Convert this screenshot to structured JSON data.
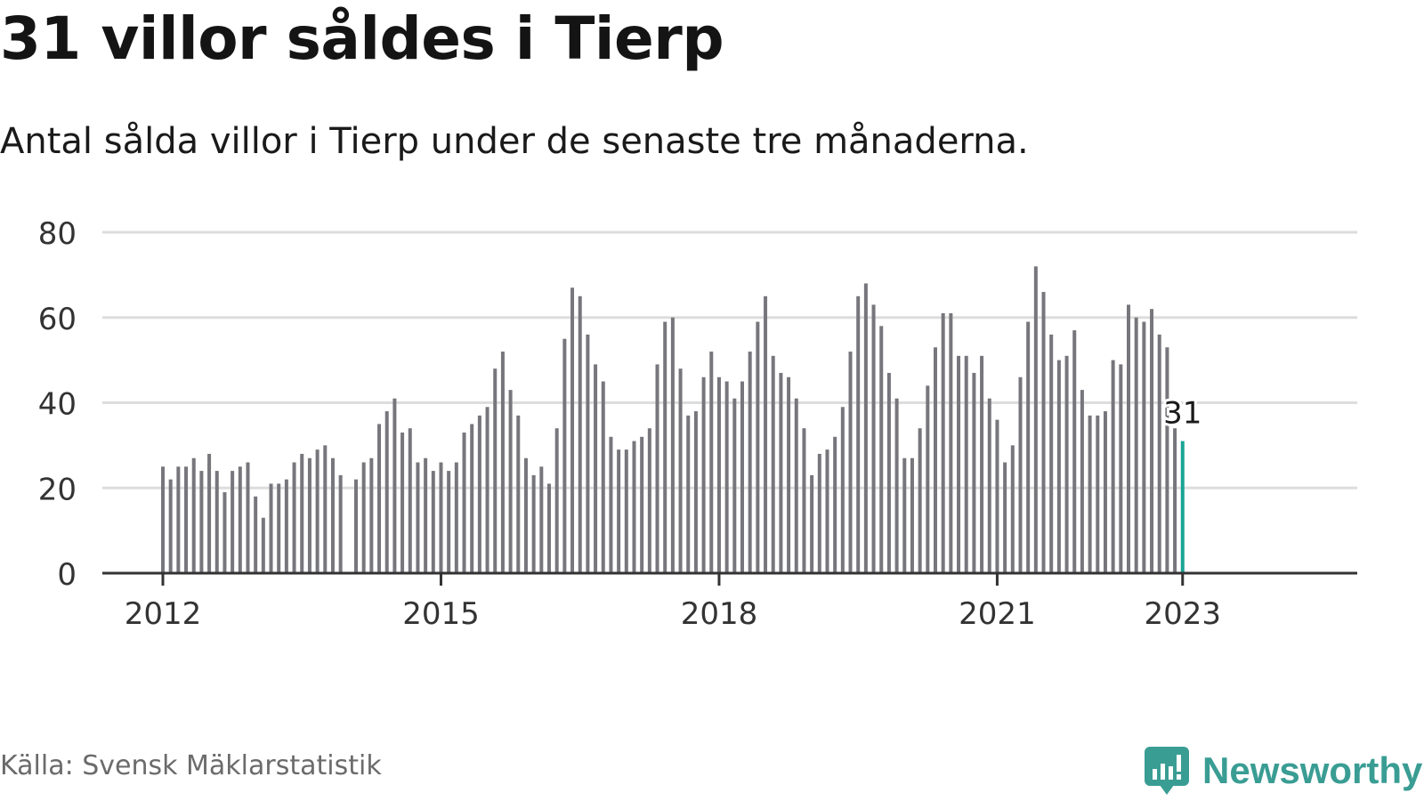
{
  "title": "31 villor såldes i Tierp",
  "subtitle": "Antal sålda villor i Tierp under de senaste tre månaderna.",
  "source": "Källa: Svensk Mäklarstatistik",
  "brand": {
    "name": "Newsworthy",
    "icon": "newsworthy-logo-icon"
  },
  "colors": {
    "bar": "#76767c",
    "highlight": "#1aa394",
    "grid": "#dddddd",
    "axis": "#333333",
    "brand": "#3a9d94"
  },
  "chart_data": {
    "type": "bar",
    "ylim": [
      0,
      80
    ],
    "yticks": [
      0,
      20,
      40,
      60,
      80
    ],
    "x_ticks": [
      {
        "label": "2012",
        "index": 0
      },
      {
        "label": "2015",
        "index": 36
      },
      {
        "label": "2018",
        "index": 72
      },
      {
        "label": "2021",
        "index": 108
      },
      {
        "label": "2023",
        "index": 132
      }
    ],
    "grid": true,
    "start": "2012-01",
    "values": [
      25,
      22,
      25,
      25,
      27,
      24,
      28,
      24,
      19,
      24,
      25,
      26,
      18,
      13,
      21,
      21,
      22,
      26,
      28,
      27,
      29,
      30,
      27,
      23,
      0,
      22,
      26,
      27,
      35,
      38,
      41,
      33,
      34,
      26,
      27,
      24,
      26,
      24,
      26,
      33,
      35,
      37,
      39,
      48,
      52,
      43,
      37,
      27,
      23,
      25,
      21,
      34,
      55,
      67,
      65,
      56,
      49,
      45,
      32,
      29,
      29,
      31,
      32,
      34,
      49,
      59,
      60,
      48,
      37,
      38,
      46,
      52,
      46,
      45,
      41,
      45,
      52,
      59,
      65,
      51,
      47,
      46,
      41,
      34,
      23,
      28,
      29,
      32,
      39,
      52,
      65,
      68,
      63,
      58,
      47,
      41,
      27,
      27,
      34,
      44,
      53,
      61,
      61,
      51,
      51,
      47,
      51,
      41,
      36,
      26,
      30,
      46,
      59,
      72,
      66,
      56,
      50,
      51,
      57,
      43,
      37,
      37,
      38,
      50,
      49,
      63,
      60,
      59,
      62,
      56,
      53,
      34,
      31
    ],
    "highlight": {
      "index": 132,
      "label": "31"
    }
  }
}
